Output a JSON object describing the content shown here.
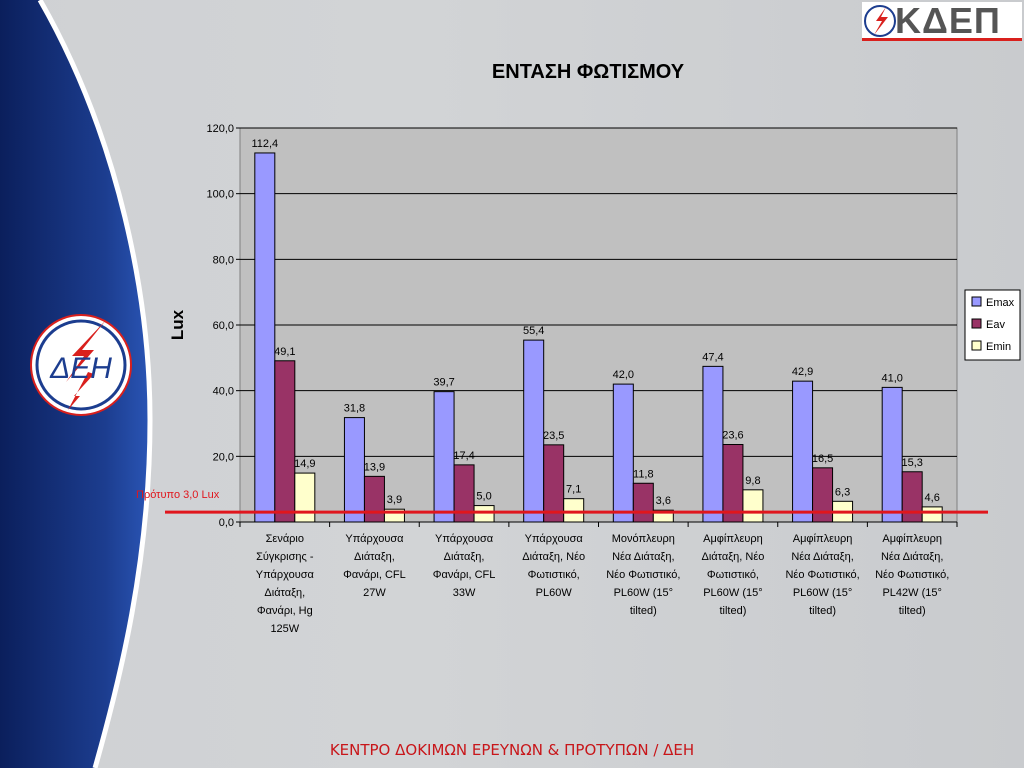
{
  "brand": {
    "name": "ΚΔΕΠ",
    "emblem_letters": "ΔΕΗ"
  },
  "footer": "ΚΕΝΤΡΟ ΔΟΚΙΜΩΝ ΕΡΕΥΝΩΝ & ΠΡΟΤΥΠΩΝ / ΔΕΗ",
  "chart_data": {
    "type": "bar",
    "title": "ΕΝΤΑΣΗ ΦΩΤΙΣΜΟΥ",
    "ylabel": "Lux",
    "xlabel": "",
    "ylim": [
      0,
      120
    ],
    "yticks": [
      "0,0",
      "20,0",
      "40,0",
      "60,0",
      "80,0",
      "100,0",
      "120,0"
    ],
    "grid": true,
    "legend_position": "right",
    "categories": [
      [
        "Σενάριο",
        "Σύγκρισης -",
        "Υπάρχουσα",
        "Διάταξη,",
        "Φανάρι, Hg",
        "125W"
      ],
      [
        "Υπάρχουσα",
        "Διάταξη,",
        "Φανάρι, CFL",
        "27W"
      ],
      [
        "Υπάρχουσα",
        "Διάταξη,",
        "Φανάρι, CFL",
        "33W"
      ],
      [
        "Υπάρχουσα",
        "Διάταξη,  Νέο",
        "Φωτιστικό,",
        "PL60W"
      ],
      [
        "Μονόπλευρη",
        "Νέα Διάταξη,",
        "Νέο Φωτιστικό,",
        "PL60W (15°",
        "tilted)"
      ],
      [
        "Αμφίπλευρη",
        "Διάταξη,  Νέο",
        "Φωτιστικό,",
        "PL60W (15°",
        "tilted)"
      ],
      [
        "Αμφίπλευρη",
        "Νέα Διάταξη,",
        "Νέο Φωτιστικό,",
        "PL60W (15°",
        "tilted)"
      ],
      [
        "Αμφίπλευρη",
        "Νέα Διάταξη,",
        "Νέο Φωτιστικό,",
        "PL42W (15°",
        "tilted)"
      ]
    ],
    "series": [
      {
        "name": "Emax",
        "color": "#9999ff",
        "values": [
          112.4,
          31.8,
          39.7,
          55.4,
          42.0,
          47.4,
          42.9,
          41.0
        ],
        "labels": [
          "112,4",
          "31,8",
          "39,7",
          "55,4",
          "42,0",
          "47,4",
          "42,9",
          "41,0"
        ]
      },
      {
        "name": "Eav",
        "color": "#993366",
        "values": [
          49.1,
          13.9,
          17.4,
          23.5,
          11.8,
          23.6,
          16.5,
          15.3
        ],
        "labels": [
          "49,1",
          "13,9",
          "17,4",
          "23,5",
          "11,8",
          "23,6",
          "16,5",
          "15,3"
        ]
      },
      {
        "name": "Emin",
        "color": "#ffffcc",
        "values": [
          14.9,
          3.9,
          5.0,
          7.1,
          3.6,
          9.8,
          6.3,
          4.6
        ],
        "labels": [
          "14,9",
          "3,9",
          "5,0",
          "7,1",
          "3,6",
          "9,8",
          "6,3",
          "4,6"
        ]
      }
    ],
    "reference_line": {
      "label": "Πρότυπο 3,0 Lux",
      "value": 3.0,
      "color": "#e0161d"
    }
  }
}
